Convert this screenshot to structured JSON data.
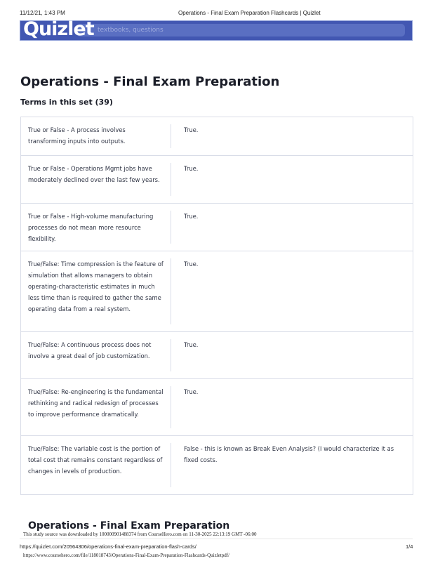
{
  "print_header": {
    "datetime": "11/12/21, 1:43 PM",
    "title": "Operations - Final Exam Preparation Flashcards | Quizlet"
  },
  "navbar": {
    "logo": "Quizlet",
    "search_placeholder": "textbooks, questions",
    "color": "#4257b2"
  },
  "page_title": "Operations - Final Exam Preparation",
  "terms_heading": "Terms in this set (39)",
  "cards": [
    {
      "term": "True or False - A process involves transforming inputs into outputs.",
      "definition": "True."
    },
    {
      "term": "True or False - Operations Mgmt jobs have moderately declined over the last few years.",
      "definition": "True."
    },
    {
      "term": "True or False - High-volume manufacturing processes do not mean more resource flexibility.",
      "definition": "True."
    },
    {
      "term": "True/False: Time compression is the feature of simulation that allows managers to obtain operating-characteristic estimates in much less time than is required to gather the same operating data from a real system.",
      "definition": "True."
    },
    {
      "term": "True/False: A continuous process does not involve a great deal of job customization.",
      "definition": "True."
    },
    {
      "term": "True/False: Re-engineering is the fundamental rethinking and radical redesign of processes to improve performance dramatically.",
      "definition": "True."
    },
    {
      "term": "True/False: The variable cost is the portion of total cost that remains constant regardless of changes in levels of production.",
      "definition": "False - this is known as Break Even Analysis? (I would characterize it as fixed costs."
    }
  ],
  "footer": {
    "repeat_title": "Operations - Final Exam Preparation",
    "download_note": "This study source was downloaded by 100000901488374 from CourseHero.com on 11-30-2025 22:13:19 GMT -06:00",
    "page_url": "https://quizlet.com/20564306/operations-final-exam-preparation-flash-cards/",
    "page_number": "1/4",
    "source_url": "https://www.coursehero.com/file/118018743/Operations-Final-Exam-Preparation-Flashcards-Quizletpdf/"
  }
}
